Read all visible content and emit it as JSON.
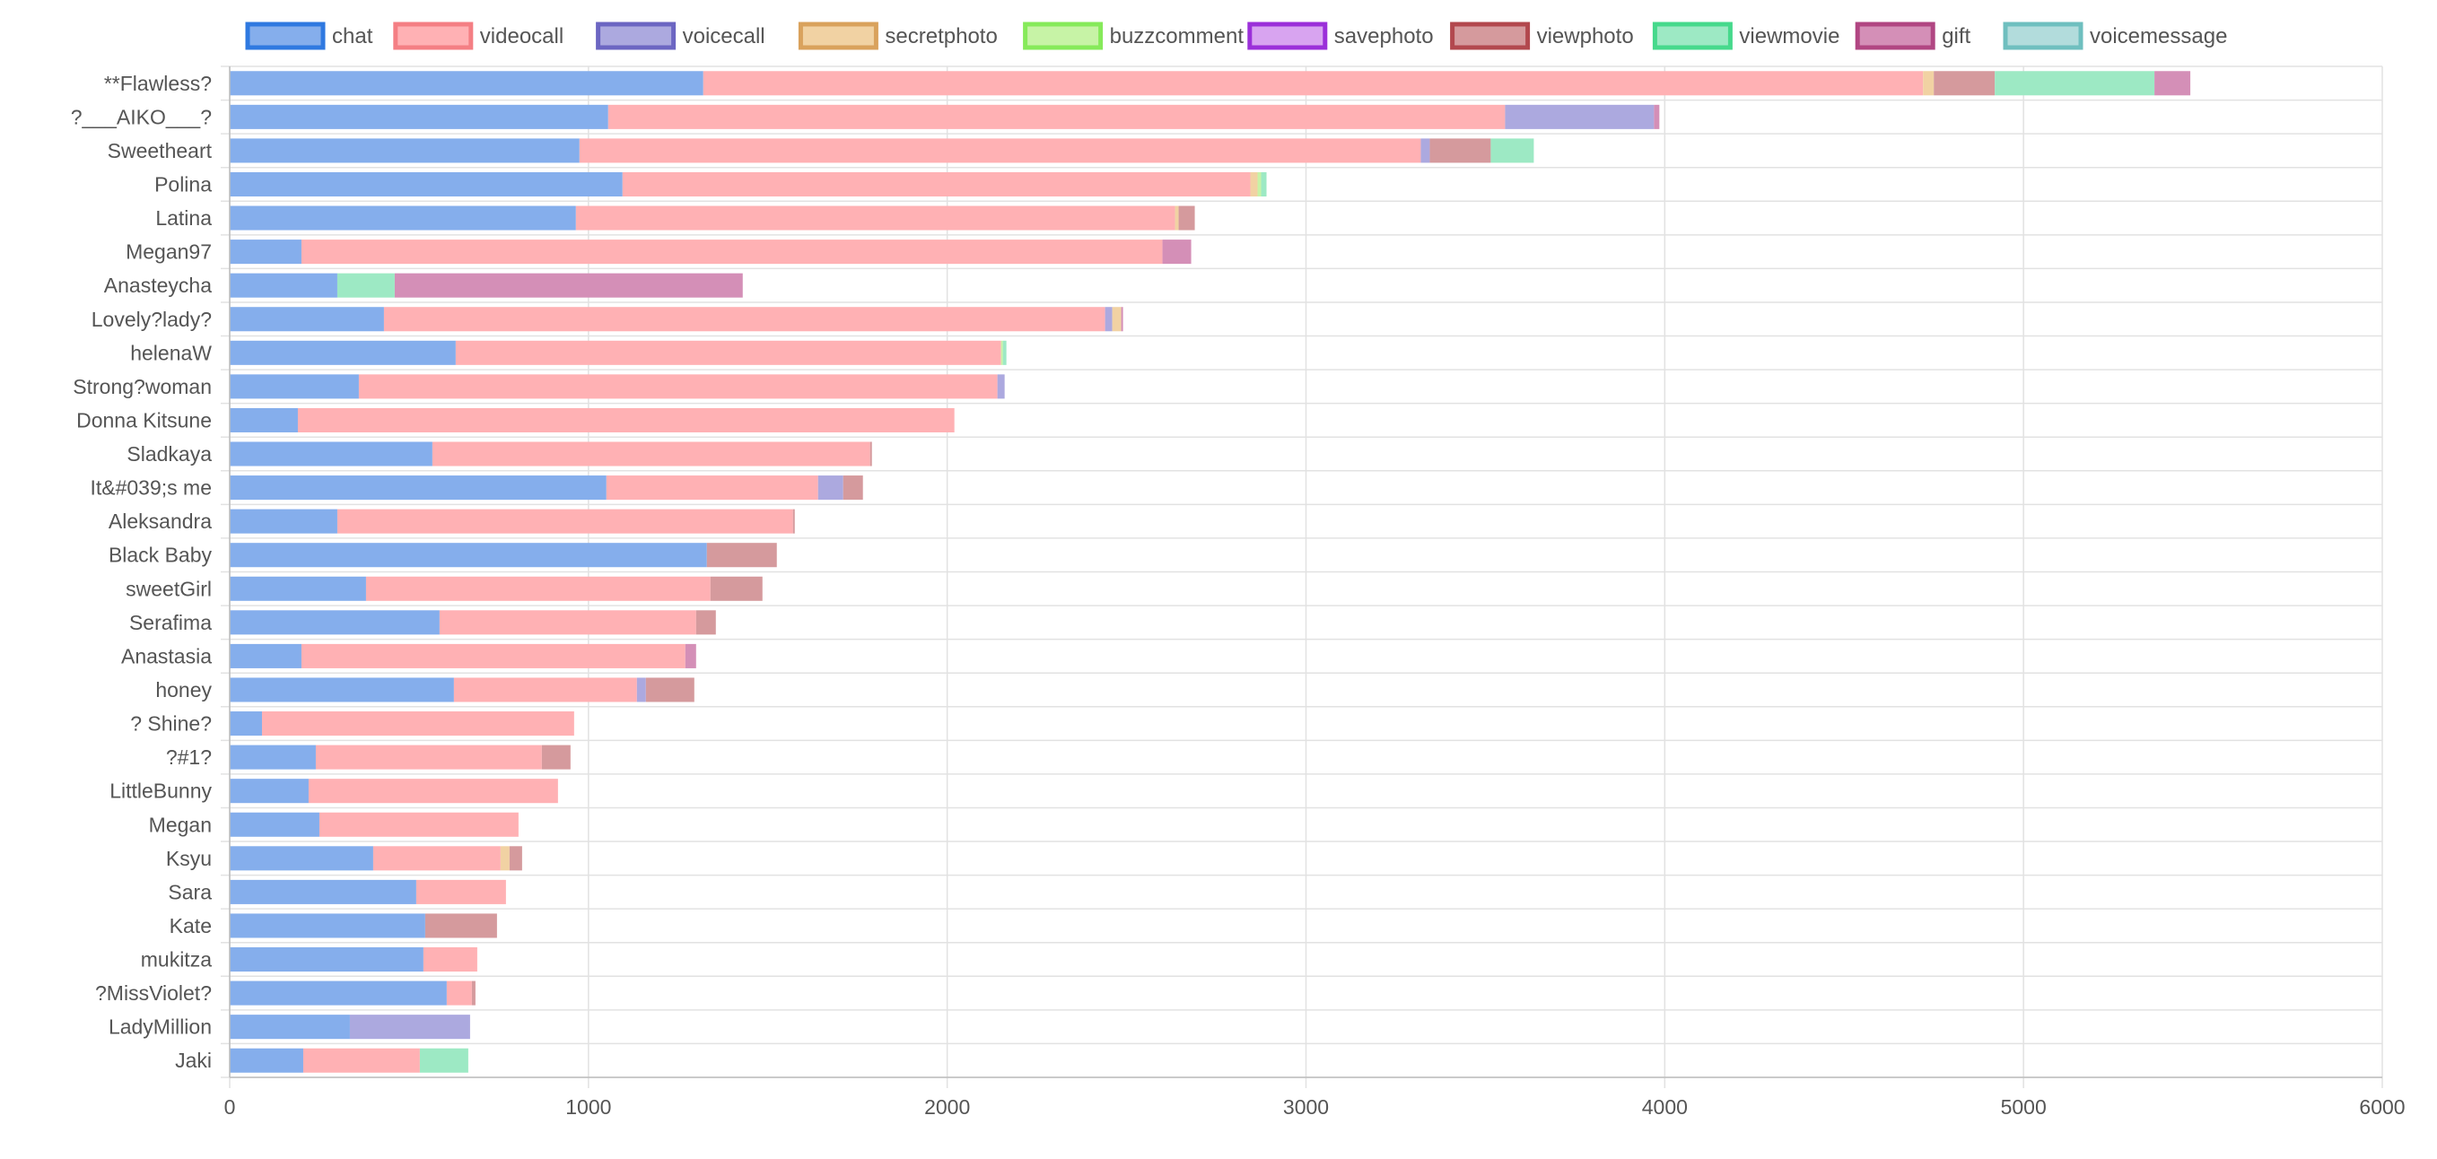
{
  "chart_data": {
    "type": "bar",
    "orientation": "horizontal",
    "stacked": true,
    "title": "",
    "xlabel": "",
    "ylabel": "",
    "xlim": [
      0,
      6000
    ],
    "x_ticks": [
      0,
      1000,
      2000,
      3000,
      4000,
      5000,
      6000
    ],
    "grid": true,
    "legend_position": "top",
    "categories": [
      "**Flawless?",
      "?___AIKO___?",
      "Sweetheart",
      "Polina",
      "Latina",
      "Megan97",
      "Anasteycha",
      "Lovely?lady?",
      "helenaW",
      "Strong?woman",
      "Donna Kitsune",
      "Sladkaya",
      "It&#039;s me",
      "Aleksandra",
      "Black Baby",
      "sweetGirl",
      "Serafima",
      "Anastasia",
      "honey",
      "? Shine?",
      "?#1?",
      "LittleBunny",
      "Megan",
      "Ksyu",
      "Sara",
      "Kate",
      "mukitza",
      "?MissViolet?",
      "LadyMillion",
      "Jaki"
    ],
    "series": [
      {
        "name": "chat",
        "color": "#85aeec",
        "border": "#2f79e0",
        "values": [
          1320,
          1055,
          975,
          1095,
          965,
          200,
          300,
          430,
          630,
          360,
          190,
          565,
          1050,
          300,
          1330,
          380,
          585,
          200,
          625,
          90,
          240,
          220,
          250,
          400,
          520,
          545,
          540,
          605,
          335,
          205
        ]
      },
      {
        "name": "videocall",
        "color": "#ffb1b4",
        "border": "#f47f84",
        "values": [
          3400,
          2500,
          2345,
          1750,
          1670,
          2400,
          0,
          2010,
          1520,
          1780,
          1830,
          1220,
          590,
          1270,
          0,
          960,
          715,
          1070,
          510,
          870,
          630,
          695,
          555,
          355,
          250,
          0,
          150,
          70,
          0,
          325
        ]
      },
      {
        "name": "voicecall",
        "color": "#aca9df",
        "border": "#6c66c2",
        "values": [
          0,
          415,
          25,
          0,
          0,
          0,
          0,
          20,
          0,
          20,
          0,
          0,
          70,
          0,
          0,
          0,
          0,
          0,
          25,
          0,
          0,
          0,
          0,
          0,
          0,
          0,
          0,
          0,
          335,
          0
        ]
      },
      {
        "name": "secretphoto",
        "color": "#f1d2a3",
        "border": "#d9a25c",
        "values": [
          30,
          0,
          0,
          20,
          10,
          0,
          0,
          25,
          0,
          0,
          0,
          0,
          0,
          0,
          0,
          0,
          0,
          0,
          0,
          0,
          0,
          0,
          0,
          25,
          0,
          0,
          0,
          0,
          0,
          0
        ]
      },
      {
        "name": "buzzcomment",
        "color": "#c7f3a6",
        "border": "#86ea5a",
        "values": [
          0,
          0,
          0,
          10,
          0,
          0,
          0,
          0,
          5,
          0,
          0,
          0,
          0,
          0,
          0,
          0,
          0,
          0,
          0,
          0,
          0,
          0,
          0,
          0,
          0,
          0,
          0,
          0,
          0,
          0
        ]
      },
      {
        "name": "savephoto",
        "color": "#d8a4f0",
        "border": "#9b30d9",
        "values": [
          0,
          0,
          0,
          0,
          0,
          0,
          0,
          0,
          0,
          0,
          0,
          0,
          0,
          0,
          0,
          0,
          0,
          0,
          0,
          0,
          0,
          0,
          0,
          0,
          0,
          0,
          0,
          0,
          0,
          0
        ]
      },
      {
        "name": "viewphoto",
        "color": "#d59a9d",
        "border": "#b2484e",
        "values": [
          170,
          0,
          170,
          0,
          45,
          0,
          0,
          0,
          0,
          0,
          0,
          5,
          55,
          5,
          195,
          145,
          55,
          0,
          135,
          0,
          80,
          0,
          0,
          35,
          0,
          200,
          0,
          10,
          0,
          0
        ]
      },
      {
        "name": "viewmovie",
        "color": "#9de9c4",
        "border": "#46d98c",
        "values": [
          445,
          0,
          120,
          15,
          0,
          0,
          160,
          0,
          10,
          0,
          0,
          0,
          0,
          0,
          0,
          0,
          0,
          0,
          0,
          0,
          0,
          0,
          0,
          0,
          0,
          0,
          0,
          0,
          0,
          135
        ]
      },
      {
        "name": "gift",
        "color": "#d48fb7",
        "border": "#b14682",
        "values": [
          100,
          15,
          0,
          0,
          0,
          80,
          970,
          5,
          0,
          0,
          0,
          0,
          0,
          0,
          0,
          0,
          0,
          30,
          0,
          0,
          0,
          0,
          0,
          0,
          0,
          0,
          0,
          0,
          0,
          0
        ]
      },
      {
        "name": "voicemessage",
        "color": "#b2dcdc",
        "border": "#6fbfbf",
        "values": [
          0,
          0,
          0,
          0,
          0,
          0,
          0,
          0,
          0,
          0,
          0,
          0,
          0,
          0,
          0,
          0,
          0,
          0,
          0,
          0,
          0,
          0,
          0,
          0,
          0,
          0,
          0,
          0,
          0,
          0
        ]
      }
    ]
  }
}
